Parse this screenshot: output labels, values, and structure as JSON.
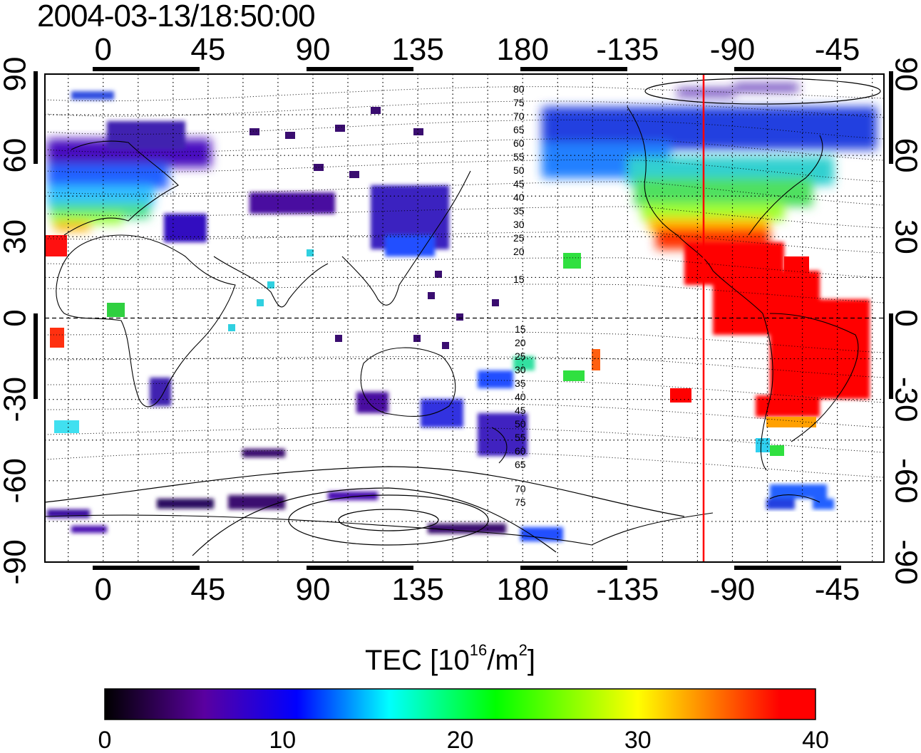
{
  "title": "2004-03-13/18:50:00",
  "map": {
    "x_ticks_top": [
      "0",
      "45",
      "90",
      "135",
      "180",
      "-135",
      "-90",
      "-45"
    ],
    "x_ticks_bottom": [
      "0",
      "45",
      "90",
      "135",
      "180",
      "-135",
      "-90",
      "-45"
    ],
    "y_ticks_left": [
      "90",
      "60",
      "30",
      "0",
      "-30",
      "-60",
      "-90"
    ],
    "y_ticks_right": [
      "90",
      "60",
      "30",
      "0",
      "-30",
      "-60",
      "-90"
    ],
    "lon_range_deg": [
      -25,
      335
    ],
    "lat_range_deg": [
      -90,
      90
    ],
    "grid": "dotted, 15 degree spacing",
    "subsolar_meridian_lon": -100,
    "contour_labels_north": [
      "80",
      "75",
      "70",
      "65",
      "60",
      "55",
      "50",
      "45",
      "40",
      "35",
      "30",
      "25",
      "20",
      "15"
    ],
    "contour_labels_south": [
      "15",
      "20",
      "25",
      "30",
      "35",
      "40",
      "45",
      "50",
      "55",
      "60",
      "65",
      "70",
      "75"
    ]
  },
  "colorbar": {
    "label_main": "TEC  [10",
    "label_exp1": "16",
    "label_mid": "/m",
    "label_exp2": "2",
    "label_end": "]",
    "ticks": [
      "0",
      "10",
      "20",
      "30",
      "40"
    ],
    "min": 0,
    "max": 40,
    "colormap_stops": [
      "#000000",
      "#5a00a0",
      "#0000ff",
      "#00ffff",
      "#00ff00",
      "#ffff00",
      "#ff8000",
      "#ff0000"
    ]
  },
  "colors": {
    "subsolar_line": "#ff0000",
    "frame": "#000000"
  }
}
